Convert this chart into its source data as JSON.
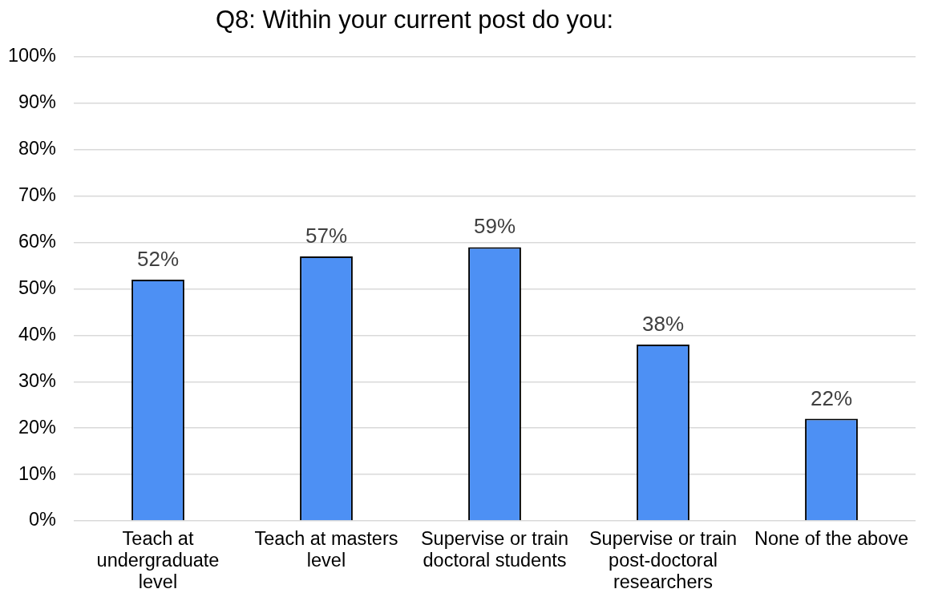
{
  "chart_data": {
    "type": "bar",
    "title": "Q8: Within your current post do you:",
    "categories": [
      "Teach at undergraduate level",
      "Teach at masters level",
      "Supervise or train doctoral students",
      "Supervise or train post-doctoral researchers",
      "None of the above"
    ],
    "values": [
      52,
      57,
      59,
      38,
      22
    ],
    "value_labels": [
      "52%",
      "57%",
      "59%",
      "38%",
      "22%"
    ],
    "color": "#4d90f4",
    "ylim": [
      0,
      100
    ],
    "yticks": [
      {
        "value": 0,
        "label": "0%"
      },
      {
        "value": 10,
        "label": "10%"
      },
      {
        "value": 20,
        "label": "20%"
      },
      {
        "value": 30,
        "label": "30%"
      },
      {
        "value": 40,
        "label": "40%"
      },
      {
        "value": 50,
        "label": "50%"
      },
      {
        "value": 60,
        "label": "60%"
      },
      {
        "value": 70,
        "label": "70%"
      },
      {
        "value": 80,
        "label": "80%"
      },
      {
        "value": 90,
        "label": "90%"
      },
      {
        "value": 100,
        "label": "100%"
      }
    ],
    "grid": "y"
  }
}
